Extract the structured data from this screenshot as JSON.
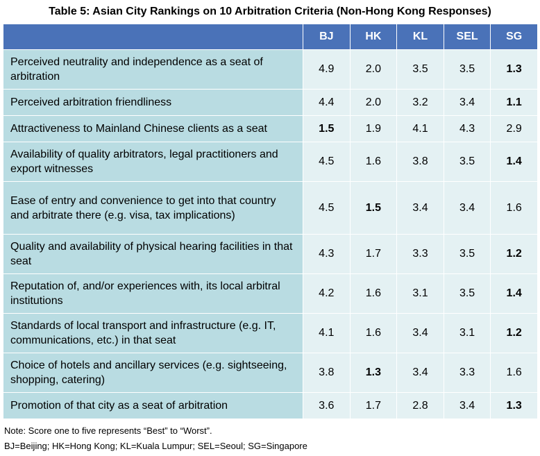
{
  "title": "Table 5: Asian City Rankings on 10 Arbitration Criteria (Non-Hong Kong Responses)",
  "columns": [
    "BJ",
    "HK",
    "KL",
    "SEL",
    "SG"
  ],
  "rows": [
    {
      "criterion": "Perceived neutrality and independence as a seat of arbitration",
      "values": [
        "4.9",
        "2.0",
        "3.5",
        "3.5",
        "1.3"
      ],
      "best": 4
    },
    {
      "criterion": "Perceived arbitration friendliness",
      "values": [
        "4.4",
        "2.0",
        "3.2",
        "3.4",
        "1.1"
      ],
      "best": 4
    },
    {
      "criterion": "Attractiveness to Mainland Chinese clients as a seat",
      "values": [
        "1.5",
        "1.9",
        "4.1",
        "4.3",
        "2.9"
      ],
      "best": 0
    },
    {
      "criterion": "Availability of quality arbitrators, legal practitioners and export witnesses",
      "values": [
        "4.5",
        "1.6",
        "3.8",
        "3.5",
        "1.4"
      ],
      "best": 4
    },
    {
      "criterion": "Ease of entry and convenience to get into that country and arbitrate there (e.g. visa, tax implications)",
      "values": [
        "4.5",
        "1.5",
        "3.4",
        "3.4",
        "1.6"
      ],
      "best": 1
    },
    {
      "criterion": "Quality and availability of physical hearing facilities in that seat",
      "values": [
        "4.3",
        "1.7",
        "3.3",
        "3.5",
        "1.2"
      ],
      "best": 4
    },
    {
      "criterion": "Reputation of, and/or experiences with, its local arbitral institutions",
      "values": [
        "4.2",
        "1.6",
        "3.1",
        "3.5",
        "1.4"
      ],
      "best": 4
    },
    {
      "criterion": "Standards of local transport and infrastructure (e.g. IT, communications, etc.) in that seat",
      "values": [
        "4.1",
        "1.6",
        "3.4",
        "3.1",
        "1.2"
      ],
      "best": 4
    },
    {
      "criterion": "Choice of hotels and ancillary services (e.g. sightseeing, shopping, catering)",
      "values": [
        "3.8",
        "1.3",
        "3.4",
        "3.3",
        "1.6"
      ],
      "best": 1
    },
    {
      "criterion": "Promotion of that city as a seat of arbitration",
      "values": [
        "3.6",
        "1.7",
        "2.8",
        "3.4",
        "1.3"
      ],
      "best": 4
    }
  ],
  "notes": {
    "score": "Note: Score one to five represents “Best” to “Worst”.",
    "legend": "BJ=Beijing; HK=Hong Kong; KL=Kuala Lumpur; SEL=Seoul; SG=Singapore"
  },
  "colors": {
    "header_bg": "#4a72b8",
    "criterion_bg": "#b9dce2",
    "value_bg": "#e4f1f3"
  }
}
